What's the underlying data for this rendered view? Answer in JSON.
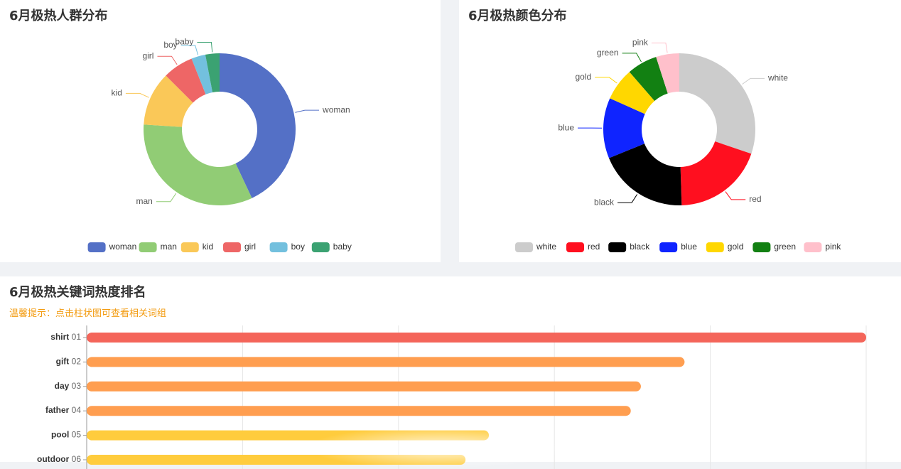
{
  "people_panel": {
    "title": "6月极热人群分布"
  },
  "color_panel": {
    "title": "6月极热颜色分布"
  },
  "rank_panel": {
    "title": "6月极热关键词热度排名",
    "tip": "温馨提示：点击柱状图可查看相关词组"
  },
  "chart_data": [
    {
      "type": "pie",
      "title": "6月极热人群分布",
      "donut": true,
      "legend_position": "bottom",
      "slices": [
        {
          "label": "woman",
          "value": 43,
          "color": "#5470c6"
        },
        {
          "label": "man",
          "value": 33,
          "color": "#91cc75"
        },
        {
          "label": "kid",
          "value": 11.5,
          "color": "#fac858"
        },
        {
          "label": "girl",
          "value": 6.5,
          "color": "#ee6666"
        },
        {
          "label": "boy",
          "value": 3,
          "color": "#73c0de"
        },
        {
          "label": "baby",
          "value": 3,
          "color": "#3ba272"
        }
      ]
    },
    {
      "type": "pie",
      "title": "6月极热颜色分布",
      "donut": true,
      "legend_position": "bottom",
      "slices": [
        {
          "label": "white",
          "value": 30.5,
          "color": "#cccccc"
        },
        {
          "label": "red",
          "value": 19.5,
          "color": "#ff0f1f"
        },
        {
          "label": "black",
          "value": 19.5,
          "color": "#000000"
        },
        {
          "label": "blue",
          "value": 13,
          "color": "#0f24ff"
        },
        {
          "label": "gold",
          "value": 7,
          "color": "#ffd700"
        },
        {
          "label": "green",
          "value": 6.5,
          "color": "#128012"
        },
        {
          "label": "pink",
          "value": 5,
          "color": "#ffc0cb"
        }
      ]
    },
    {
      "type": "bar",
      "orientation": "horizontal",
      "title": "6月极热关键词热度排名",
      "grid": true,
      "categories": [
        "shirt",
        "gift",
        "day",
        "father",
        "pool",
        "outdoor"
      ],
      "ranks": [
        "01",
        "02",
        "03",
        "04",
        "05",
        "06"
      ],
      "values": [
        100,
        76.7,
        71.1,
        69.8,
        51.6,
        48.6
      ],
      "xlim": [
        0,
        100
      ],
      "colors": [
        "#f4655a",
        "#ff9e50",
        "#ff9e50",
        "#ff9e50",
        "#ffcc3d",
        "#ffcc3d"
      ]
    }
  ]
}
